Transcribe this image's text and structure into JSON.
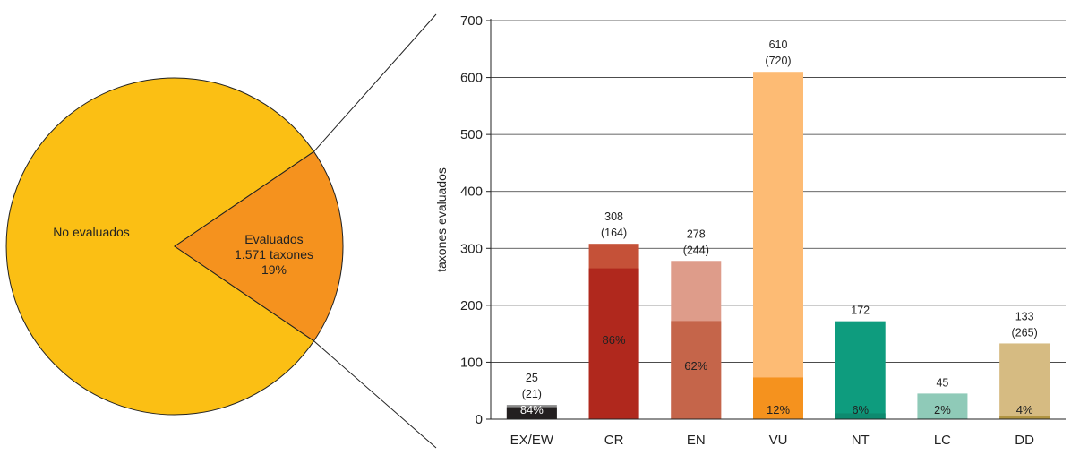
{
  "chart_data": [
    {
      "type": "pie",
      "slices": [
        {
          "label": "No evaluados",
          "share_percent": 81,
          "color": "#FBBF14"
        },
        {
          "label": "Evaluados",
          "sublabel": "1.571 taxones",
          "percent_label": "19%",
          "share_percent": 19,
          "color": "#F5921E"
        }
      ]
    },
    {
      "type": "bar",
      "ylabel": "taxones evaluados",
      "ylim": [
        0,
        700
      ],
      "yticks": [
        0,
        100,
        200,
        300,
        400,
        500,
        600,
        700
      ],
      "grid": true,
      "categories": [
        "EX/EW",
        "CR",
        "EN",
        "VU",
        "NT",
        "LC",
        "DD"
      ],
      "values": [
        25,
        308,
        278,
        610,
        172,
        45,
        133
      ],
      "value_labels": [
        "25",
        "308",
        "278",
        "610",
        "172",
        "45",
        "133"
      ],
      "secondary_labels": [
        "(21)",
        "(164)",
        "(244)",
        "(720)",
        "",
        "",
        "(265)"
      ],
      "inner_share_percent": [
        84,
        86,
        62,
        12,
        6,
        2,
        4
      ],
      "inner_labels": [
        "84%",
        "86%",
        "62%",
        "12%",
        "6%",
        "2%",
        "4%"
      ],
      "colors_light": [
        "#8C8C8C",
        "#C55138",
        "#DE9C8A",
        "#FDBB74",
        "#0E9C7E",
        "#8FCAB8",
        "#D6BB82"
      ],
      "colors_dark": [
        "#231F20",
        "#B0281D",
        "#C5654A",
        "#F5921E",
        "#0E8A6F",
        "#2E9E82",
        "#B09442"
      ]
    }
  ]
}
